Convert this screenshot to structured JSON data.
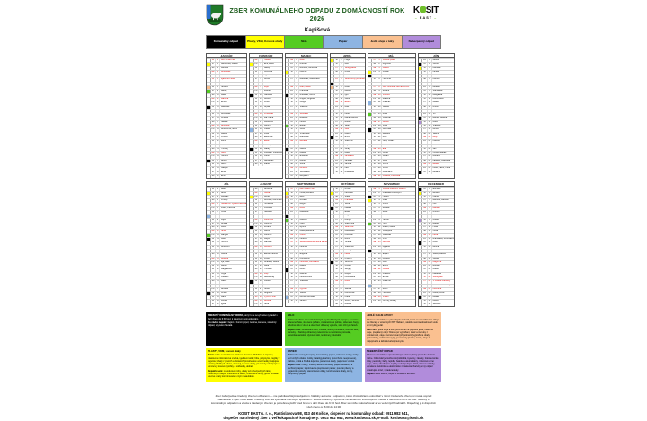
{
  "header": {
    "title": "ZBER KOMUNÁLNEHO ODPADU Z DOMÁCNOSTÍ ROK 2026",
    "municipality": "Kapišová",
    "logo_text": "KOSIT",
    "logo_sub": "EAST"
  },
  "legend": {
    "items": [
      {
        "key": "komunalny",
        "label": "Komunálny odpad",
        "color": "#000000",
        "text_color": "#ffffff"
      },
      {
        "key": "plasty",
        "label": "Plasty, VKM, Kovové obaly",
        "color": "#ffff00",
        "text_color": "#000000"
      },
      {
        "key": "sklo",
        "label": "Sklo",
        "color": "#55cc22",
        "text_color": "#000000"
      },
      {
        "key": "papier",
        "label": "Papier",
        "color": "#8db4e2",
        "text_color": "#000000"
      },
      {
        "key": "oleje",
        "label": "Jedlé oleje a tuky",
        "color": "#fac090",
        "text_color": "#000000"
      },
      {
        "key": "nebezpecny",
        "label": "Nebezpečný odpad",
        "color": "#b18cdb",
        "text_color": "#000000"
      }
    ]
  },
  "calendar": {
    "dow_abbrev": [
      "Po",
      "Ut",
      "St",
      "Št",
      "Pi",
      "So",
      "Ne"
    ],
    "colors": {
      "komunalny": "#000000",
      "plasty": "#ffff00",
      "sklo": "#55cc22",
      "papier": "#8db4e2",
      "oleje": "#fac090",
      "nebezpecny": "#b18cdb"
    },
    "months": [
      {
        "name": "JANUÁR",
        "days": 31,
        "first_dow": 3,
        "holidays": [
          1,
          6
        ],
        "markers": {
          "2": "plasty",
          "8": "oleje",
          "9": "sklo",
          "13": "komunalny",
          "27": "komunalny"
        },
        "names": [
          "Deň vzniku SR",
          "Alexandra, Karina",
          "Daniela",
          "Drahoslav",
          "Andrea",
          "Zjavenie Pána",
          "Bohuslava",
          "Severín",
          "Alexej",
          "Dáša",
          "Malvína",
          "Ernest",
          "Rastislav",
          "Radovan",
          "Dobroslav",
          "Kristína",
          "Nataša",
          "Bohdana",
          "Drahomíra, Mário",
          "Dalibor",
          "Vincent",
          "Zora",
          "Miloš",
          "Timotej",
          "Gejza",
          "Tamara",
          "Bohuš",
          "Alfonz",
          "Gašpar",
          "Ema",
          "Emil"
        ]
      },
      {
        "name": "FEBRUÁR",
        "days": 28,
        "first_dow": 6,
        "holidays": [],
        "markers": {
          "2": "plasty",
          "10": "komunalny",
          "19": "papier",
          "24": "komunalny"
        },
        "names": [
          "Tatiana",
          "Erik, Erika",
          "Blažej",
          "Veronika",
          "Agáta",
          "Dorota",
          "Vanda",
          "Zoja",
          "Zdenko",
          "Gabriela",
          "Dezider",
          "Perla",
          "Arpád",
          "Valentín",
          "Pravoslav",
          "Ida, Liana",
          "Miloslava",
          "Jaromír",
          "Vlasta",
          "Lívia",
          "Eleonóra",
          "Etela",
          "Roman, Romana",
          "Matej",
          "Frederik, Frederika",
          "Viktor",
          "Alexander",
          "Zlatica"
        ]
      },
      {
        "name": "MAREC",
        "days": 31,
        "first_dow": 6,
        "holidays": [],
        "markers": {
          "4": "plasty",
          "10": "komunalny",
          "18": "sklo",
          "24": "komunalny"
        },
        "names": [
          "Albín",
          "Anežka",
          "Bohumil, Bohumila",
          "Kazimír",
          "Fridrich",
          "Radoslav, Radoslava",
          "Tomáš",
          "Alan, Alana",
          "Františka",
          "Branislav, Bruno",
          "Angela, Angelika",
          "Gregor",
          "Vlastimil",
          "Matilda",
          "Svetlana",
          "Boleslav",
          "Ľubica",
          "Eduard",
          "Jozef",
          "Víťazoslav",
          "Blahoslav",
          "Beňadik",
          "Adrián",
          "Gabriel",
          "Marián",
          "Emanuel",
          "Alena",
          "Soňa",
          "Miroslav",
          "Vieroslava",
          "Benjamín"
        ]
      },
      {
        "name": "APRÍL",
        "days": 30,
        "first_dow": 2,
        "holidays": [
          3,
          6
        ],
        "markers": {
          "1": "plasty",
          "7": "komunalny",
          "8": "oleje",
          "21": "komunalny"
        },
        "names": [
          "Hugo",
          "Zita",
          "Veľký piatok",
          "Izidor",
          "Miroslava",
          "Veľkonočný pondelok",
          "Zoltán",
          "Albert",
          "Milena",
          "Igor",
          "Július",
          "Estera",
          "Aleš",
          "Justína",
          "Fedor",
          "Dana, Danica",
          "Rudolf",
          "Valér",
          "Jela",
          "Marcel",
          "Ervín",
          "Slavomír",
          "Vojtech",
          "Juraj",
          "Marek",
          "Jaroslava",
          "Jaroslav",
          "Jarmila",
          "Lea",
          "Anastázia"
        ]
      },
      {
        "name": "MÁJ",
        "days": 31,
        "first_dow": 4,
        "holidays": [
          1,
          8
        ],
        "markers": {
          "4": "plasty",
          "5": "komunalny",
          "12": "papier",
          "15": "sklo",
          "19": "komunalny"
        },
        "names": [
          "Sviatok práce",
          "Žigmund",
          "Galina",
          "Florián",
          "Lesana, Lesia",
          "Hermína",
          "Monika",
          "Deň víťazstva nad fašizmom",
          "Roland",
          "Viktória",
          "Blažena",
          "Pankrác",
          "Servác",
          "Bonifác",
          "Žofia",
          "Svetozár",
          "Gizela",
          "Viola",
          "Gertrúda",
          "Bernard",
          "Zina",
          "Júlia, Juliana",
          "Želmíra",
          "Ela",
          "Urban",
          "Dušan",
          "Iveta",
          "Viliam",
          "Vilma",
          "Ferdinand",
          "Petrana, Petronela"
        ]
      },
      {
        "name": "JÚN",
        "days": 30,
        "first_dow": 0,
        "holidays": [],
        "markers": {
          "2": "komunalny",
          "3": "plasty",
          "16": "komunalny",
          "17": "nebezpecny",
          "30": "komunalny"
        },
        "names": [
          "Žaneta",
          "Xénia",
          "Karolína",
          "Lenka",
          "Laura",
          "Norbert",
          "Róbert",
          "Medard",
          "Stanislava",
          "Margaréta",
          "Dobroslava",
          "Zlatko",
          "Anton",
          "Vasil",
          "Vít",
          "Blanka, Bianka",
          "Adolf",
          "Vratislav",
          "Alfréd",
          "Valéria",
          "Alojz",
          "Paulína",
          "Sidónia",
          "Ján",
          "Olívia, Tadeáš",
          "Adriána",
          "Ladislav, Ladislava",
          "Beáta",
          "Peter, Pavol, Petra",
          "Melánia"
        ]
      },
      {
        "name": "JÚL",
        "days": 31,
        "first_dow": 2,
        "holidays": [
          5
        ],
        "markers": {
          "2": "plasty",
          "8": "papier",
          "13": "sklo",
          "14": "komunalny",
          "28": "komunalny"
        },
        "names": [
          "Diana",
          "Berta",
          "Miloslav",
          "Prokop",
          "Sviatok sv. Cyrila a Metoda",
          "Patrik, Patrícia",
          "Oliver",
          "Ivan",
          "Lujza",
          "Amália",
          "Milota",
          "Nina",
          "Margita",
          "Kamil",
          "Henrich",
          "Drahomír",
          "Bohuslav",
          "Kamila",
          "Dušana",
          "Iľja, Eliáš",
          "Daniel",
          "Magdaléna",
          "Oľga",
          "Vladimír",
          "Jakub",
          "Anna, Hana",
          "Božena",
          "Krištof",
          "Marta",
          "Libuša",
          "Ignác"
        ]
      },
      {
        "name": "AUGUST",
        "days": 31,
        "first_dow": 5,
        "holidays": [
          29
        ],
        "markers": {
          "3": "plasty",
          "11": "komunalny",
          "25": "komunalny"
        },
        "names": [
          "Božidara",
          "Gustáv",
          "Jerguš",
          "Dominik, Dominika",
          "Hortenzia",
          "Jozefína",
          "Štefánia",
          "Oskar",
          "Ľubomíra",
          "Vavrinec",
          "Zuzana",
          "Darina",
          "Ľubomír",
          "Mojmír",
          "Marcela",
          "Leonard",
          "Milica",
          "Elena, Helena",
          "Lýdia",
          "Anabela, Liliana",
          "Jana",
          "Tichomír",
          "Filip",
          "Bartolomej",
          "Ľudovít",
          "Samuel",
          "Silvia",
          "Augustín",
          "Výročie SNP",
          "Ružena",
          "Nora"
        ]
      },
      {
        "name": "SEPTEMBER",
        "days": 30,
        "first_dow": 1,
        "holidays": [
          1,
          15
        ],
        "markers": {
          "2": "plasty",
          "3": "oleje",
          "8": "komunalny",
          "9": "sklo",
          "22": "komunalny",
          "29": "papier"
        },
        "names": [
          "Deň Ústavy SR",
          "Linda, Rebeka",
          "Belo",
          "Rozália",
          "Regína",
          "Alica",
          "Marianna",
          "Miriama",
          "Martina",
          "Oleg",
          "Bystrík",
          "Mária, Marlena",
          "Ctibor",
          "Ľudomil",
          "Sedembolestná Panna Mária",
          "Ľudmila",
          "Olympia",
          "Eugénia",
          "Konštantín",
          "Ľuboslav, Ľuboslava",
          "Matúš",
          "Móric",
          "Zdenka",
          "Ľuboš, Ľubor",
          "Vladislav",
          "Edita",
          "Cyprián",
          "Václav",
          "Michal, Michaela",
          "Jarolím"
        ]
      },
      {
        "name": "OKTÓBER",
        "days": 31,
        "first_dow": 3,
        "holidays": [],
        "markers": {
          "2": "plasty",
          "6": "komunalny",
          "20": "komunalny"
        },
        "names": [
          "Arnold",
          "Levoslav",
          "Stela",
          "František",
          "Viera",
          "Natália",
          "Eliška",
          "Brigita",
          "Dionýz",
          "Slavomíra",
          "Valentína",
          "Maximilián",
          "Koloman",
          "Boris",
          "Terézia",
          "Vladimíra",
          "Hedviga",
          "Lukáš",
          "Kristián",
          "Vendelín",
          "Uršuľa",
          "Sergej",
          "Alojzia",
          "Kvetoslava",
          "Aurel",
          "Demeter",
          "Sabína",
          "Dobromila",
          "Klára",
          "Šimon, Simona",
          "Aurélia"
        ]
      },
      {
        "name": "NOVEMBER",
        "days": 30,
        "first_dow": 6,
        "holidays": [
          1,
          17
        ],
        "markers": {
          "3": "komunalny",
          "4": "plasty",
          "10": "sklo",
          "17": "komunalny",
          "26": "papier"
        },
        "names": [
          "Sviatok všetkých svätých",
          "Pamiatka zosnulých",
          "Hubert",
          "Karol",
          "Imrich",
          "Renáta",
          "René",
          "Bohumír",
          "Teodor",
          "Tibor",
          "Martin, Maroš",
          "Svätopluk",
          "Stanislav",
          "Irma",
          "Leopold",
          "Agnesa",
          "Deň boja za slobodu a demokraciu",
          "Eugen",
          "Alžbeta",
          "Félix",
          "Elvíra",
          "Cecília",
          "Klement",
          "Emília",
          "Katarína",
          "Kornel",
          "Milan",
          "Henrieta",
          "Vratko",
          "Ondrej, Andrej"
        ]
      },
      {
        "name": "DECEMBER",
        "days": 31,
        "first_dow": 1,
        "holidays": [
          24,
          25,
          26
        ],
        "markers": {
          "1": "komunalny",
          "2": "plasty",
          "9": "nebezpecny",
          "15": "komunalny",
          "29": "komunalny"
        },
        "names": [
          "Edmund",
          "Bibiána",
          "Oldrich",
          "Barbora, Barbara",
          "Oto",
          "Mikuláš",
          "Ambróz",
          "Marína",
          "Izabela",
          "Radúz",
          "Hilda",
          "Otília",
          "Lucia",
          "Branislava, Bronislava",
          "Ivica",
          "Albína",
          "Kornélia",
          "Sláva, Slávka",
          "Judita",
          "Dagmara",
          "Bohdan",
          "Adela",
          "Nadežda",
          "Štedrý deň",
          "1. sviatok vianočný",
          "2. sviatok vianočný",
          "Filoména",
          "Ivana, Ivona",
          "Milada",
          "Dávid",
          "Silvester"
        ]
      }
    ]
  },
  "info_blocks": [
    {
      "key": "komunalny",
      "color": "#000000",
      "text_color": "#ffffff",
      "title": "",
      "lines": [
        {
          "b": "ZMESOVÝ KOMUNÁLNY ODPAD,",
          "t": "ktorý ho je nevyhnutné vykladať v deň zberu do 6:30 hod. k miestnym komunikáciám."
        },
        {
          "b": "Do nádob nepatrí:",
          "t": "tlejúci a horúci popol, zemina, kamene, stavebný odpad, uhynuté zvieratá."
        }
      ]
    },
    {
      "key": "sklo",
      "color": "#55cc22",
      "text_color": "#000000",
      "title": "SKLO",
      "lines": [
        {
          "b": "Patrí sem:",
          "t": "fľaše od nealkoholických aj alkoholických nápojov, nevratné sklenené fľaše, sklenené poháre, zaváraninové poháre, sklenené črepy, tabuľové sklo z okien a dverí bez drôtenej výstuže, sklo rôznych farieb."
        },
        {
          "b": "Nepatrí sem:",
          "t": "smaltované sklo, zrkadlá, sklo s prímesami, drôtené sklo, žiarovky a žiarivky, obrazovky televízorov a monitorov, porcelán, keramika, autosklo, dymové sklo, teplomery, plexisklo."
        }
      ]
    },
    {
      "key": "oleje",
      "color": "#fac090",
      "text_color": "#000000",
      "title": "JEDLÉ OLEJE A TUKY",
      "lines": [
        {
          "b": "Zber",
          "t": "sa uskutočňuje v pôvodných obaloch, ktoré sú odovzdávané. Oleje sa zbierajú v uzavretých PET fľašiach, nádoba nesmie obsahovať vodu ani zvyšky jedál."
        },
        {
          "b": "Patrí sem:",
          "t": "jedlé oleje a tuky používané na prípravu jedál, rastlinné oleje, prepálený olej z fritéz a po vyprážaní, masť a iné tuky z domácností, oleje z konzervovaných potravín (vyprážané obaly, pomazánky, nakladaná syry), pevné tuky (maslo, masť), oleje z nápojového a lahôdkového priemyslu."
        }
      ]
    },
    {
      "key": "plasty",
      "color": "#ffff00",
      "text_color": "#000000",
      "title": "PLASTY, VKM, kovové obaly",
      "lines": [
        {
          "b": "Patria sem:",
          "t": "neznečistené stlačené plastové PET fľaše z nápojov, plastové a mikroténové vrecká, igelitové tašky, fólie, polystyrén, tégliky z jogurtov, obaly z pracích a čistiacich prostriedkov a kozmetiky; nápojové kartóny VKM (od mlieka, džúsov), kovové obaly, plechovky od nápojov a konzervy, kovové výrobky a súčiastky, alobal."
        },
        {
          "b": "Nepatria sem:",
          "t": "novodurové rúrky, obaly od nebezpečných látok, motorových olejov, chemikálií a farieb, znečistené obaly, guma, molitan, kovové obaly kombinované s iným materiálom."
        }
      ]
    },
    {
      "key": "papier",
      "color": "#8db4e2",
      "text_color": "#000000",
      "title": "PAPIER",
      "lines": [
        {
          "b": "Patrí sem:",
          "t": "noviny, časopisy, kancelársky papier, reklamné letáky, knihy bez tvrdých obalov, zošity, katalógy, kartóny (povrchovo neupravené), krabice, vlnitá a hladká lepenka, papierové obaly, papierové vrecká."
        },
        {
          "b": "Nepatrí sem:",
          "t": "mokrý, mastný alebo znečistený papier, asfaltový a dechtový papier, kopírovací a prepisovací papier, použité plienky a hygienické potreby, viacvrstvové obaly, kombinované obaly, knihy, kompozitný papier."
        }
      ]
    },
    {
      "key": "nebezpecny",
      "color": "#b18cdb",
      "text_color": "#000000",
      "title": "NEBEZPEČNÝ ODPAD",
      "lines": [
        {
          "b": "Zber",
          "t": "sa uskutočňuje spred rodinných domov, ktorý prebieha dvakrát ročne. Odovzdať je možné: rozpúšťadlá, kyseliny, zásady, fotochemické látky, pesticídy, farby, lepidlá, batérie a akumulátory, motorové a iné oleje, obaly obsahujúce zvyšky nebezpečných látok, tlakové nádoby, vyradené elektrické a elektronické zariadenia, žiarivky a iný odpad obsahujúci ortuť, vyradené lieky."
        },
        {
          "b": "Nepatrí sem:",
          "t": "eternit, odpad s obsahom azbestu."
        }
      ]
    }
  ],
  "footer": {
    "note": "Zber zabezpečuje triedený zber len občanom — nie podnikateľským subjektom. Nádoby a vrecia s odpadom, ktoré chcú občania odovzdať v rámci triedeného zberu, si musia vopred zaevidovať v spol. Kosit East. Triedený zber sa vykonáva vrecovým spôsobom. Vrecia musia byť vyložené na viditeľnom a dostupnom mieste v deň zberu do 6:30 hod. Nádoby s komunálnym odpadom a vrecia s triedeným zberom je potrebné vyložiť pred bránu v deň zberu do 6:30 hod. Zber sa môže uskutočňovať aj vo večerných hodinách. Dispečing je k dispozícii v deň zberu od 6:00 do 14:30.",
    "contact1": "KOSIT EAST s. r. o., Rastislavova 98, 043 46 Košice, dispečer na komunálny odpad: 0911 982 941,",
    "contact2": "dispečer na triedený zber a veľkokapacitné kontajnery: 0903 962 952, www.kositeast.sk, e-mail: kositeast@kosit.sk"
  }
}
